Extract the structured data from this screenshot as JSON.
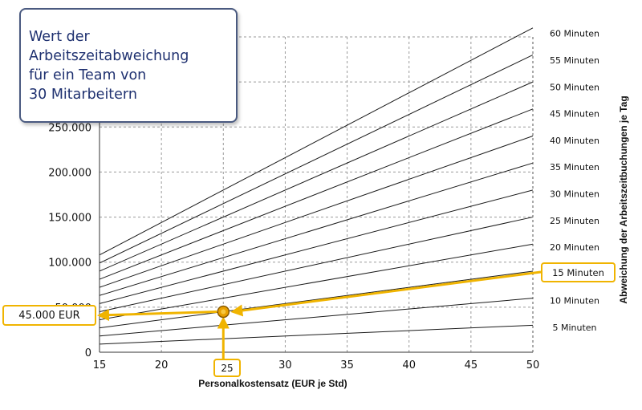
{
  "chart_data": {
    "type": "line",
    "title": "Wert der Arbeitszeitabweichung für ein Team von 30 Mitarbeitern",
    "title_lines": [
      "Wert der",
      "Arbeitszeitabweichung",
      "für ein Team von",
      "30 Mitarbeitern"
    ],
    "xlabel": "Personalkostensatz (EUR je Std)",
    "ylabel_right": "Abweichung der Arbeitszeitbuchungen je Tag",
    "xlim": [
      15,
      50
    ],
    "ylim": [
      0,
      350000
    ],
    "x_ticks": [
      15,
      20,
      25,
      30,
      35,
      40,
      45,
      50
    ],
    "x_tick_labels": [
      "15",
      "20",
      "25",
      "30",
      "35",
      "40",
      "45",
      "50"
    ],
    "y_ticks": [
      0,
      50000,
      100000,
      150000,
      200000,
      250000
    ],
    "y_tick_labels": [
      "0",
      "50.000",
      "100.000",
      "150.000",
      "200.000",
      "250.000"
    ],
    "grid": true,
    "series": [
      {
        "name": "5 Minuten",
        "minutes": 5,
        "values_at_x": {
          "15": 9000,
          "50": 30000
        }
      },
      {
        "name": "10 Minuten",
        "minutes": 10,
        "values_at_x": {
          "15": 18000,
          "50": 60000
        }
      },
      {
        "name": "15 Minuten",
        "minutes": 15,
        "values_at_x": {
          "15": 27000,
          "50": 90000
        }
      },
      {
        "name": "20 Minuten",
        "minutes": 20,
        "values_at_x": {
          "15": 36000,
          "50": 120000
        }
      },
      {
        "name": "25 Minuten",
        "minutes": 25,
        "values_at_x": {
          "15": 45000,
          "50": 150000
        }
      },
      {
        "name": "30 Minuten",
        "minutes": 30,
        "values_at_x": {
          "15": 54000,
          "50": 180000
        }
      },
      {
        "name": "35 Minuten",
        "minutes": 35,
        "values_at_x": {
          "15": 63000,
          "50": 210000
        }
      },
      {
        "name": "40 Minuten",
        "minutes": 40,
        "values_at_x": {
          "15": 72000,
          "50": 240000
        }
      },
      {
        "name": "45 Minuten",
        "minutes": 45,
        "values_at_x": {
          "15": 81000,
          "50": 270000
        }
      },
      {
        "name": "50 Minuten",
        "minutes": 50,
        "values_at_x": {
          "15": 90000,
          "50": 300000
        }
      },
      {
        "name": "55 Minuten",
        "minutes": 55,
        "values_at_x": {
          "15": 99000,
          "50": 330000
        }
      },
      {
        "name": "60 Minuten",
        "minutes": 60,
        "values_at_x": {
          "15": 108000,
          "50": 360000
        }
      }
    ],
    "annotations": {
      "highlight_point": {
        "x": 25,
        "y": 45000
      },
      "x_callout": "25",
      "y_callout": "45.000 EUR",
      "line_callout": "15 Minuten",
      "accent_color": "#f0b400",
      "marker_color": "#e8a000"
    }
  }
}
